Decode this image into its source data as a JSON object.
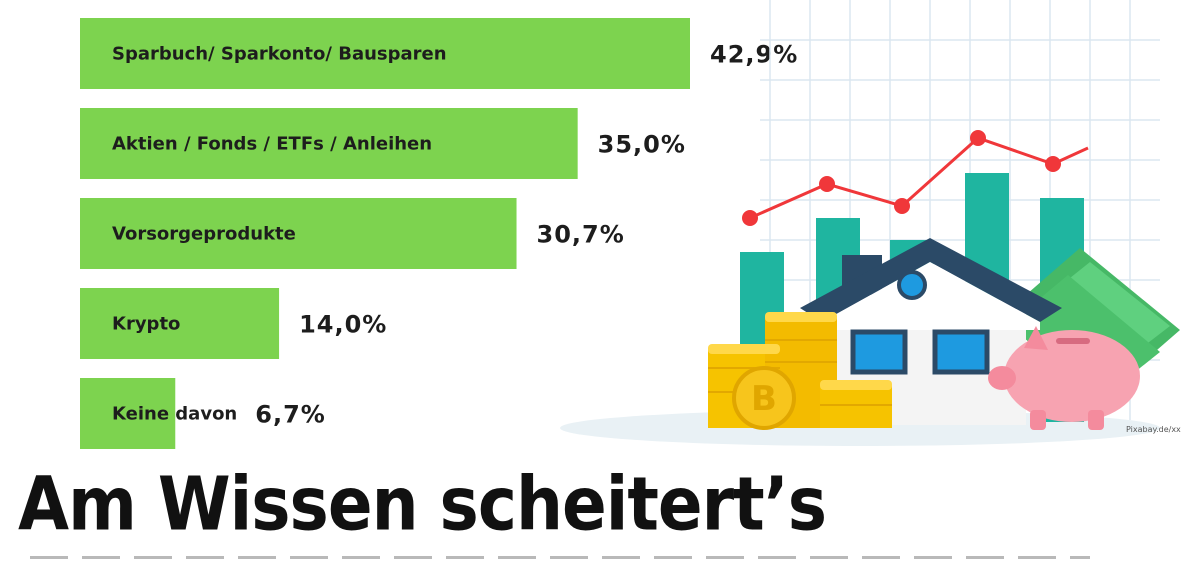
{
  "chart_data": {
    "type": "bar",
    "orientation": "horizontal",
    "categories": [
      "Sparbuch/ Sparkonto/ Bausparen",
      "Aktien / Fonds / ETFs / Anleihen",
      "Vorsorgeprodukte",
      "Krypto",
      "Keine davon"
    ],
    "values": [
      42.9,
      35.0,
      30.7,
      14.0,
      6.7
    ],
    "value_labels": [
      "42,9%",
      "35,0%",
      "30,7%",
      "14,0%",
      "6,7%"
    ],
    "bar_color": "#7dd34f",
    "xlim": [
      0,
      42.9
    ]
  },
  "illustration": {
    "credit": "Pixabay.de/xx",
    "subject": "house-coins-piggybank-growth-chart"
  },
  "headline": "Am Wissen scheitert’s",
  "colors": {
    "grid": "#dbe7f0",
    "teal": "#1fb5a0",
    "line": "#f0373a",
    "coin": "#f6c300",
    "roof": "#2b4a67",
    "window": "#1e9ae0",
    "pig": "#f7a3b1",
    "cash": "#4cc06c"
  }
}
